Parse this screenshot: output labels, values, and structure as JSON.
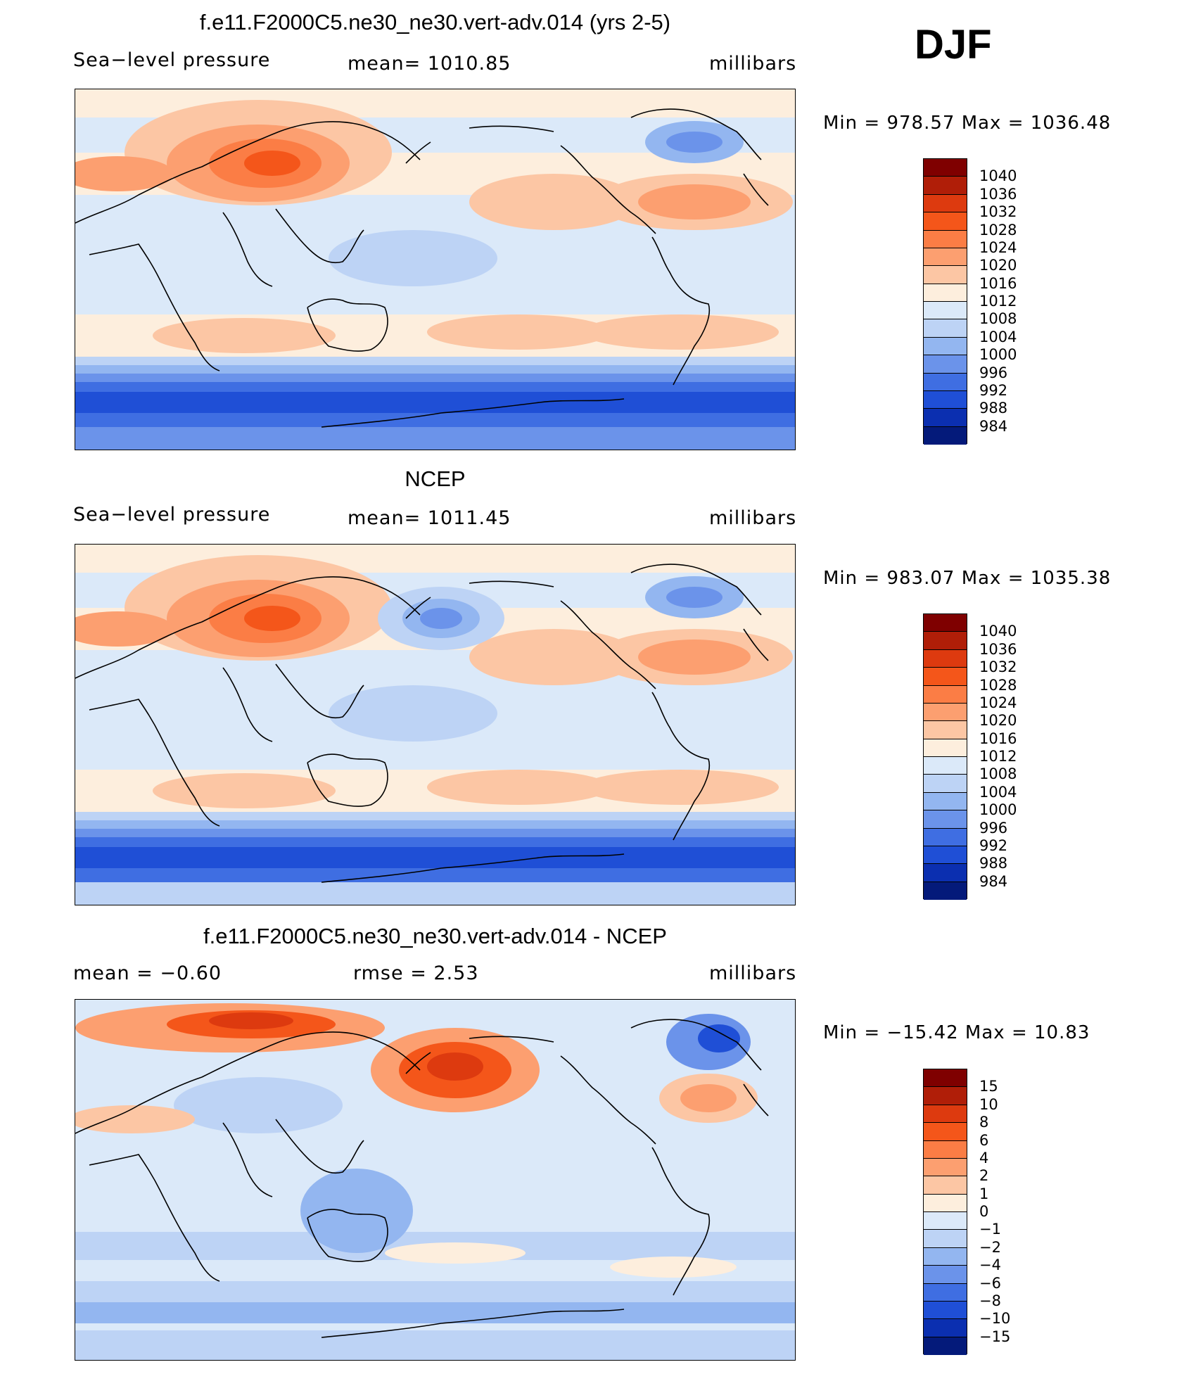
{
  "header": {
    "season": "DJF"
  },
  "panels": [
    {
      "title": "f.e11.F2000C5.ne30_ne30.vert-adv.014 (yrs 2-5)",
      "left_label": "Sea−level pressure",
      "center_label": "mean=  1010.85",
      "right_label": "millibars",
      "min_max": "Min  =  978.57  Max  =  1036.48",
      "colorbar_labels": [
        "1040",
        "1036",
        "1032",
        "1028",
        "1024",
        "1020",
        "1016",
        "1012",
        "1008",
        "1004",
        "1000",
        "996",
        "992",
        "988",
        "984"
      ]
    },
    {
      "title": "NCEP",
      "left_label": "Sea−level pressure",
      "center_label": "mean=  1011.45",
      "right_label": "millibars",
      "min_max": "Min  =  983.07  Max  =  1035.38",
      "colorbar_labels": [
        "1040",
        "1036",
        "1032",
        "1028",
        "1024",
        "1020",
        "1016",
        "1012",
        "1008",
        "1004",
        "1000",
        "996",
        "992",
        "988",
        "984"
      ]
    },
    {
      "title": "f.e11.F2000C5.ne30_ne30.vert-adv.014 - NCEP",
      "left_label": "mean  =    −0.60",
      "center_label": "rmse  =     2.53",
      "right_label": "millibars",
      "min_max": "Min  =  −15.42  Max  =    10.83",
      "colorbar_labels": [
        "15",
        "10",
        "8",
        "6",
        "4",
        "2",
        "1",
        "0",
        "−1",
        "−2",
        "−4",
        "−6",
        "−8",
        "−10",
        "−15"
      ]
    }
  ],
  "colors": {
    "colorbar": [
      "#7f0000",
      "#b01e08",
      "#dd3a0f",
      "#f4561a",
      "#fb7d45",
      "#fc9f70",
      "#fcc6a4",
      "#fdeedd",
      "#dbe9f9",
      "#bdd3f5",
      "#93b6f0",
      "#6b93ea",
      "#3f6ee2",
      "#1f4fd6",
      "#0b2fb0",
      "#041a7a"
    ],
    "land_outline": "#000000"
  }
}
